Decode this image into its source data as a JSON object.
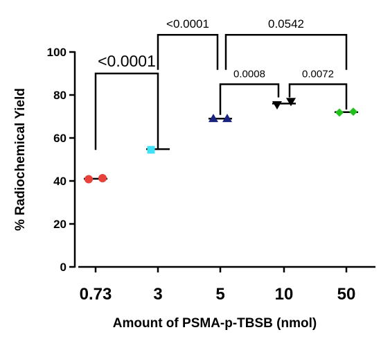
{
  "chart_data": {
    "type": "scatter",
    "title": "",
    "xlabel": "Amount of PSMA-p-TBSB (nmol)",
    "ylabel": "% Radiochemical Yield",
    "ylim": [
      0,
      100
    ],
    "yticks": [
      "0",
      "20",
      "40",
      "60",
      "80",
      "100"
    ],
    "categories": [
      "0.73",
      "3",
      "5",
      "10",
      "50"
    ],
    "series": [
      {
        "category": "0.73",
        "values": [
          40.8,
          41.3
        ],
        "mean": 41.0,
        "color": "#e8413c",
        "marker": "circle"
      },
      {
        "category": "3",
        "values": [
          54.5
        ],
        "mean": 54.8,
        "color": "#3fe1f5",
        "marker": "square"
      },
      {
        "category": "5",
        "values": [
          69.0,
          69.0
        ],
        "mean": 69.0,
        "color": "#1a237e",
        "marker": "triangle-up"
      },
      {
        "category": "10",
        "values": [
          75.5,
          77.0
        ],
        "mean": 76.0,
        "color": "#000000",
        "marker": "triangle-down"
      },
      {
        "category": "50",
        "values": [
          71.8,
          72.2
        ],
        "mean": 72.0,
        "color": "#22c01a",
        "marker": "diamond"
      }
    ],
    "comparisons": [
      {
        "from": "0.73",
        "to": "3",
        "label": "<0.0001",
        "level": 90,
        "size": "large"
      },
      {
        "from": "3",
        "to": "5",
        "label": "<0.0001",
        "level": 108,
        "size": "medium"
      },
      {
        "from": "5",
        "to": "50",
        "label": "0.0542",
        "level": 108,
        "size": "medium"
      },
      {
        "from": "5",
        "to": "10",
        "label": "0.0008",
        "level": 85,
        "size": "small"
      },
      {
        "from": "10",
        "to": "50",
        "label": "0.0072",
        "level": 85,
        "size": "small"
      }
    ]
  }
}
